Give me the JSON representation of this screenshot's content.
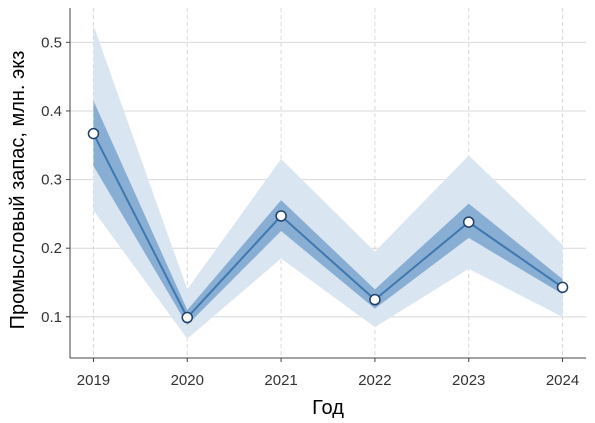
{
  "chart_data": {
    "type": "line",
    "xlabel": "Год",
    "ylabel": "Промысловый запас, млн. экз",
    "x": [
      2019,
      2020,
      2021,
      2022,
      2023,
      2024
    ],
    "x_tick_labels": [
      "2019",
      "2020",
      "2021",
      "2022",
      "2023",
      "2024"
    ],
    "y_ticks": [
      0.1,
      0.2,
      0.3,
      0.4,
      0.5
    ],
    "y_tick_labels": [
      "0.1",
      "0.2",
      "0.3",
      "0.4",
      "0.5"
    ],
    "xlim": [
      2018.75,
      2024.25
    ],
    "ylim": [
      0.04,
      0.55
    ],
    "grid": true,
    "series": [
      {
        "values": [
          0.367,
          0.099,
          0.247,
          0.125,
          0.238,
          0.143
        ],
        "inner_band": {
          "lower": [
            0.32,
            0.088,
            0.225,
            0.112,
            0.215,
            0.133
          ],
          "upper": [
            0.415,
            0.11,
            0.27,
            0.14,
            0.265,
            0.155
          ]
        },
        "outer_band": {
          "lower": [
            0.255,
            0.068,
            0.185,
            0.085,
            0.17,
            0.1
          ],
          "upper": [
            0.525,
            0.14,
            0.33,
            0.195,
            0.335,
            0.205
          ]
        }
      }
    ],
    "colors": {
      "line": "#3d78b0",
      "inner_band": "#89aed3",
      "outer_band": "#d9e5f1",
      "marker_fill": "#ffffff",
      "marker_edge": "#1f3f6a",
      "grid": "#d8d8d8",
      "axis": "#444444"
    }
  }
}
